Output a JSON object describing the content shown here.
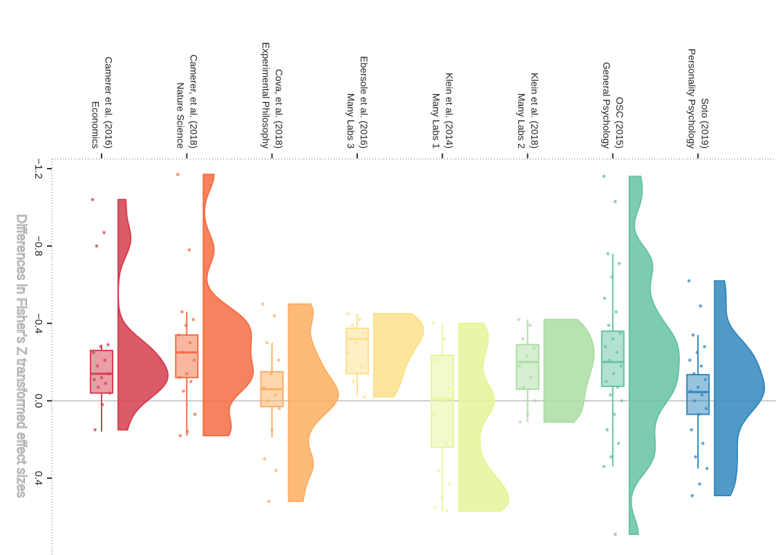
{
  "chart_data": {
    "type": "raincloud",
    "y_label": "Differences in Fisher's Z transformed effect sizes",
    "ylim": [
      -1.25,
      0.79
    ],
    "yticks": [
      {
        "value": -1.2,
        "label": "−1.2"
      },
      {
        "value": -0.8,
        "label": "−0.8"
      },
      {
        "value": -0.4,
        "label": "−0.4"
      },
      {
        "value": 0,
        "label": "0.0"
      },
      0.4
    ],
    "groups": [
      {
        "label": [
          "Camerer et al. (2016)",
          "Economics"
        ],
        "color": "#d53e4f",
        "box": {
          "whisker_min": -0.29,
          "q1": -0.26,
          "median": -0.14,
          "q3": -0.04,
          "whisker_max": 0.16
        },
        "points": [
          -1.04,
          -0.87,
          -0.8,
          -0.29,
          -0.28,
          -0.25,
          -0.21,
          -0.18,
          -0.14,
          -0.12,
          -0.11,
          -0.09,
          -0.07,
          -0.04,
          0.02,
          0.15
        ]
      },
      {
        "label": [
          "Camerer, et al. (2018)",
          "Nature Science"
        ],
        "color": "#f46d43",
        "box": {
          "whisker_min": -0.46,
          "q1": -0.34,
          "median": -0.25,
          "q3": -0.12,
          "whisker_max": 0.18
        },
        "points": [
          -1.17,
          -0.78,
          -0.46,
          -0.42,
          -0.39,
          -0.34,
          -0.3,
          -0.25,
          -0.21,
          -0.14,
          -0.12,
          -0.1,
          -0.05,
          0.07,
          0.16,
          0.18
        ]
      },
      {
        "label": [
          "Cova, et al. (2018)",
          "Experimental Philosophy"
        ],
        "color": "#fdae61",
        "box": {
          "whisker_min": -0.3,
          "q1": -0.15,
          "median": -0.06,
          "q3": 0.03,
          "whisker_max": 0.19
        },
        "points": [
          -0.5,
          -0.44,
          -0.3,
          -0.21,
          -0.14,
          -0.07,
          -0.03,
          0.0,
          0.04,
          0.15,
          0.3,
          0.36,
          0.52
        ]
      },
      {
        "label": [
          "Ebersole et al. (2016)",
          "Many Labs 3"
        ],
        "color": "#fee08b",
        "box": {
          "whisker_min": -0.45,
          "q1": -0.375,
          "median": -0.32,
          "q3": -0.14,
          "whisker_max": -0.02
        },
        "points": [
          -0.45,
          -0.42,
          -0.39,
          -0.35,
          -0.3,
          -0.25,
          -0.18,
          -0.1,
          -0.02
        ]
      },
      {
        "label": [
          "Klein et al. (2014)",
          "Many Labs 1"
        ],
        "color": "#e6f598",
        "box": {
          "whisker_min": -0.4,
          "q1": -0.235,
          "median": -0.01,
          "q3": 0.24,
          "whisker_max": 0.57
        },
        "points": [
          -0.4,
          -0.32,
          -0.21,
          -0.07,
          0.0,
          0.07,
          0.22,
          0.36,
          0.43,
          0.5,
          0.55,
          0.57
        ]
      },
      {
        "label": [
          "Klein et al. (2018)",
          "Many Labs 2"
        ],
        "color": "#abdda4",
        "box": {
          "whisker_min": -0.42,
          "q1": -0.29,
          "median": -0.2,
          "q3": -0.06,
          "whisker_max": 0.11
        },
        "points": [
          -0.42,
          -0.39,
          -0.32,
          -0.27,
          -0.23,
          -0.18,
          -0.12,
          -0.07,
          0.0,
          0.07,
          0.11
        ]
      },
      {
        "label": [
          "OSC (2015)",
          "General Psychology"
        ],
        "color": "#66c2a5",
        "box": {
          "whisker_min": -0.76,
          "q1": -0.36,
          "median": -0.2,
          "q3": -0.075,
          "whisker_max": 0.34
        },
        "points": [
          -1.16,
          -1.03,
          -0.76,
          -0.71,
          -0.64,
          -0.53,
          -0.46,
          -0.39,
          -0.35,
          -0.32,
          -0.28,
          -0.25,
          -0.21,
          -0.18,
          -0.14,
          -0.1,
          -0.07,
          -0.03,
          0.0,
          0.07,
          0.15,
          0.22,
          0.29,
          0.34,
          0.69
        ]
      },
      {
        "label": [
          "Soto (2019)",
          "Personality Psychology"
        ],
        "color": "#3288bd",
        "box": {
          "whisker_min": -0.34,
          "q1": -0.135,
          "median": -0.045,
          "q3": 0.07,
          "whisker_max": 0.35
        },
        "points": [
          -0.62,
          -0.49,
          -0.34,
          -0.28,
          -0.25,
          -0.21,
          -0.18,
          -0.14,
          -0.11,
          -0.07,
          -0.05,
          -0.03,
          0.0,
          0.04,
          0.07,
          0.15,
          0.22,
          0.29,
          0.35,
          0.43,
          0.49
        ]
      }
    ]
  }
}
